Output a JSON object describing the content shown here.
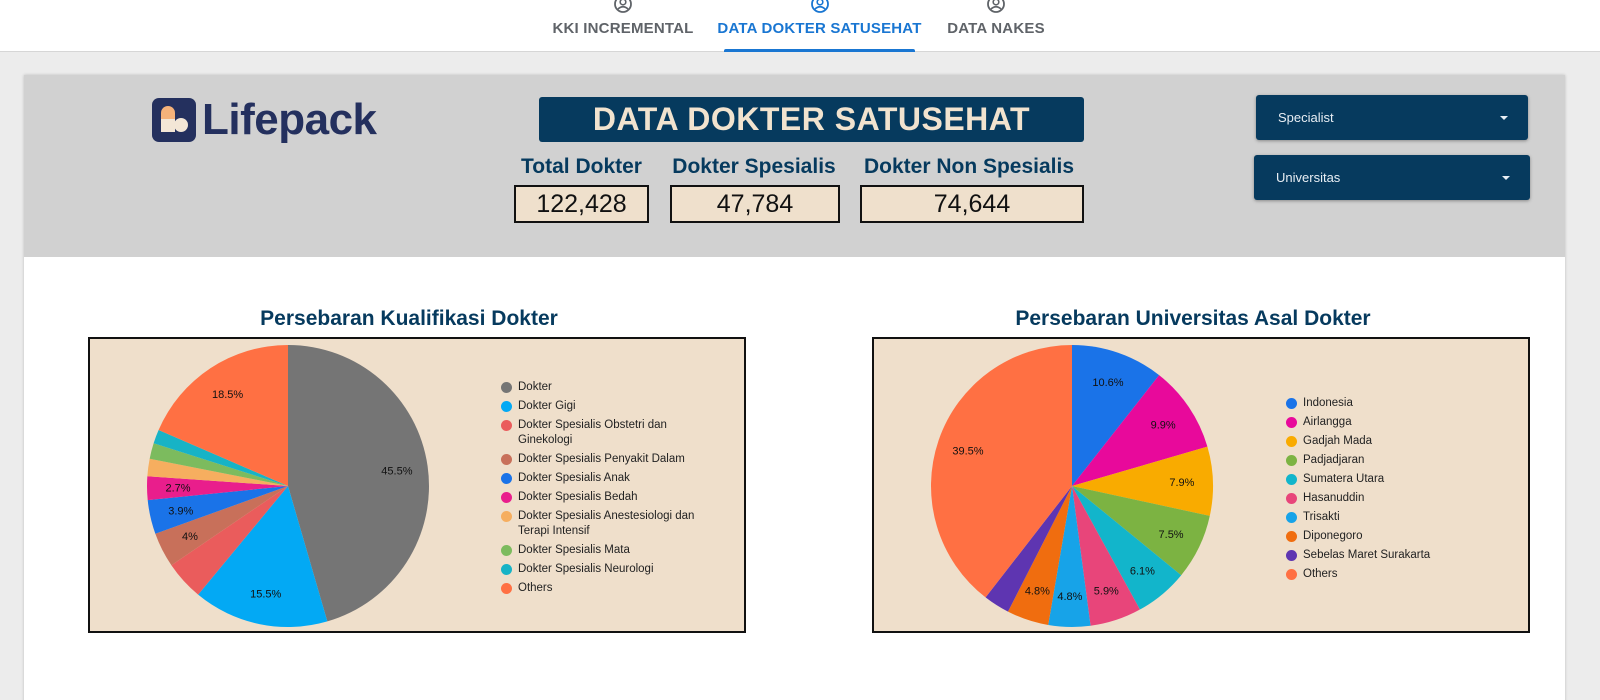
{
  "nav": {
    "tabs": [
      {
        "label": "KKI INCREMENTAL",
        "active": false
      },
      {
        "label": "DATA DOKTER SATUSEHAT",
        "active": true
      },
      {
        "label": "DATA NAKES",
        "active": false
      }
    ]
  },
  "header": {
    "logo_text": "Lifepack",
    "title": "DATA DOKTER SATUSEHAT",
    "kpis": [
      {
        "label": "Total Dokter",
        "value": "122,428"
      },
      {
        "label": "Dokter Spesialis",
        "value": "47,784"
      },
      {
        "label": "Dokter Non Spesialis",
        "value": "74,644"
      }
    ],
    "filters": {
      "specialist": "Specialist",
      "universitas": "Universitas"
    }
  },
  "colors": {
    "navy": "#063a5e",
    "cream": "#efdfcb",
    "tab_active": "#1976d2",
    "logo": "#24305e"
  },
  "chart_data": [
    {
      "type": "pie",
      "title": "Persebaran Kualifikasi Dokter",
      "labels": [
        "Dokter",
        "Dokter Gigi",
        "Dokter Spesialis Obstetri dan Ginekologi",
        "Dokter Spesialis Penyakit Dalam",
        "Dokter Spesialis Anak",
        "Dokter Spesialis Bedah",
        "Dokter Spesialis Anestesiologi dan Terapi Intensif",
        "Dokter Spesialis Mata",
        "Dokter Spesialis Neurologi",
        "Others"
      ],
      "values": [
        45.5,
        15.5,
        4.5,
        4.0,
        3.9,
        2.7,
        2.0,
        1.8,
        1.6,
        18.5
      ],
      "data_labels": [
        "45.5%",
        "15.5%",
        "",
        "4%",
        "3.9%",
        "2.7%",
        "",
        "",
        "",
        "18.5%"
      ],
      "colors": [
        "#757575",
        "#03a9f4",
        "#ea5c5c",
        "#c8705a",
        "#1a73e8",
        "#e91e8c",
        "#f6ae5f",
        "#7cbb5e",
        "#17b3c6",
        "#ff7043"
      ]
    },
    {
      "type": "pie",
      "title": "Persebaran Universitas Asal Dokter",
      "labels": [
        "Indonesia",
        "Airlangga",
        "Gadjah Mada",
        "Padjadjaran",
        "Sumatera Utara",
        "Hasanuddin",
        "Trisakti",
        "Diponegoro",
        "Sebelas Maret Surakarta",
        "Others"
      ],
      "values": [
        10.6,
        9.9,
        7.9,
        7.5,
        6.1,
        5.9,
        4.8,
        4.8,
        3.0,
        39.5
      ],
      "data_labels": [
        "10.6%",
        "9.9%",
        "7.9%",
        "7.5%",
        "6.1%",
        "5.9%",
        "4.8%",
        "4.8%",
        "",
        "39.5%"
      ],
      "colors": [
        "#1a73e8",
        "#e8099b",
        "#f9ab00",
        "#7cb342",
        "#12b5cb",
        "#e8457a",
        "#17a3e8",
        "#f06d0f",
        "#5e35b1",
        "#ff7043"
      ]
    }
  ]
}
